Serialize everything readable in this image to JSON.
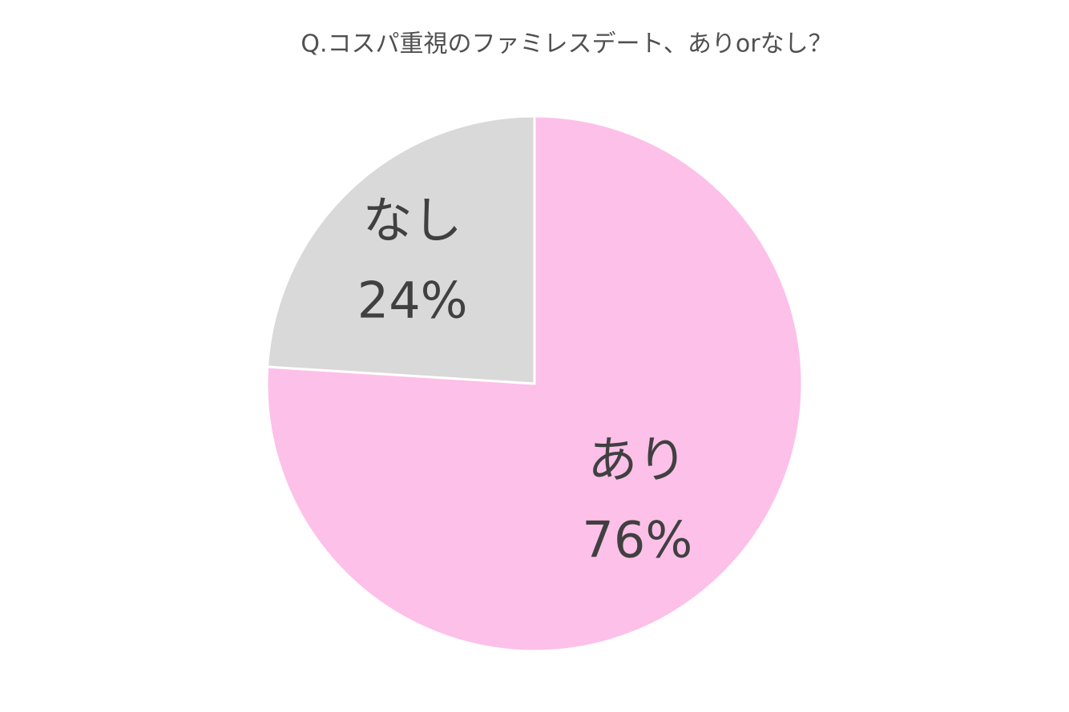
{
  "chart_data": {
    "type": "pie",
    "title": "Q.コスパ重視のファミレスデート、ありorなし？",
    "categories": [
      "あり",
      "なし"
    ],
    "values": [
      76,
      24
    ],
    "value_labels": [
      "76%",
      "24%"
    ],
    "colors": [
      "#fdc0e8",
      "#d9d9d9"
    ]
  }
}
